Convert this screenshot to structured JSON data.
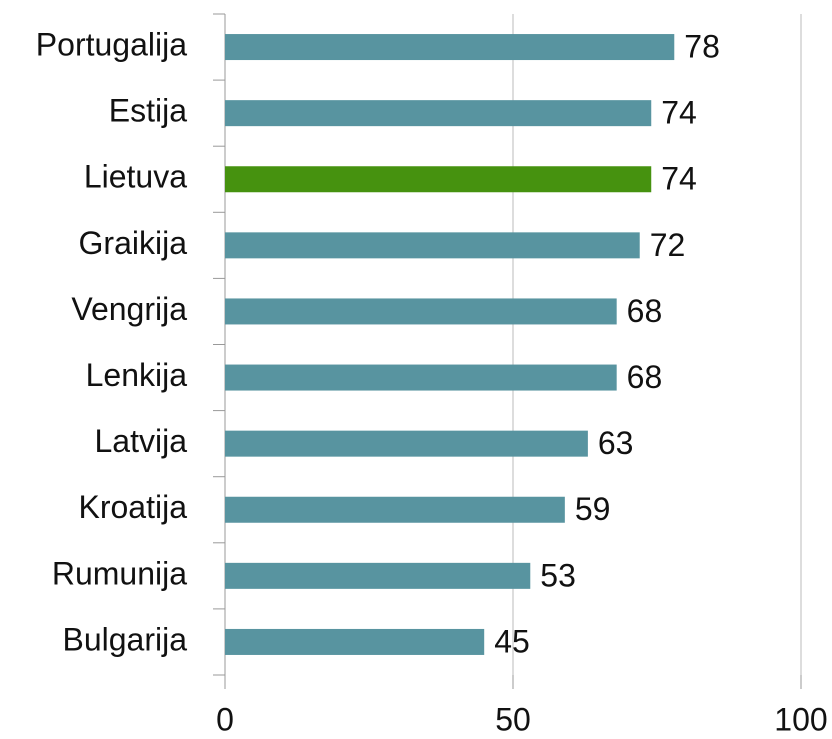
{
  "chart_data": {
    "type": "bar",
    "orientation": "horizontal",
    "categories": [
      "Portugalija",
      "Estija",
      "Lietuva",
      "Graikija",
      "Vengrija",
      "Lenkija",
      "Latvija",
      "Kroatija",
      "Rumunija",
      "Bulgarija"
    ],
    "values": [
      78,
      74,
      74,
      72,
      68,
      68,
      63,
      59,
      53,
      45
    ],
    "colors": [
      "#5894a0",
      "#5894a0",
      "#46920f",
      "#5894a0",
      "#5894a0",
      "#5894a0",
      "#5894a0",
      "#5894a0",
      "#5894a0",
      "#5894a0"
    ],
    "xlim": [
      0,
      100
    ],
    "xticks": [
      0,
      50,
      100
    ],
    "grid": true,
    "data_labels": true
  }
}
